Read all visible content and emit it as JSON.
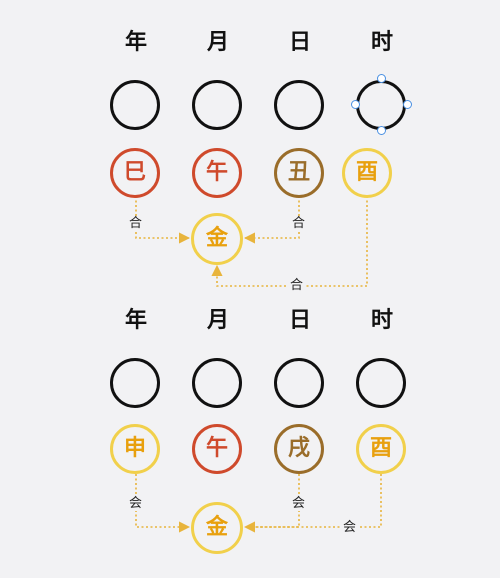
{
  "colors": {
    "red": "#cf4a2c",
    "brown": "#9a6d2a",
    "yellow": "#f1d04b",
    "yellow_text": "#e8a00e",
    "line": "#e8b43c",
    "ring": "#111111",
    "selection": "#4a90e2"
  },
  "panels": [
    {
      "headers": [
        "年",
        "月",
        "日",
        "时"
      ],
      "branches": [
        {
          "char": "巳",
          "color": "red"
        },
        {
          "char": "午",
          "color": "red"
        },
        {
          "char": "丑",
          "color": "brown"
        },
        {
          "char": "酉",
          "color": "yellow"
        }
      ],
      "result": "金",
      "label_left": "合",
      "label_right": "合",
      "label_bottom": "合"
    },
    {
      "headers": [
        "年",
        "月",
        "日",
        "时"
      ],
      "branches": [
        {
          "char": "申",
          "color": "yellow"
        },
        {
          "char": "午",
          "color": "red"
        },
        {
          "char": "戌",
          "color": "brown"
        },
        {
          "char": "酉",
          "color": "yellow"
        }
      ],
      "result": "金",
      "label_left": "会",
      "label_right": "会",
      "label_bottom": "会"
    }
  ]
}
